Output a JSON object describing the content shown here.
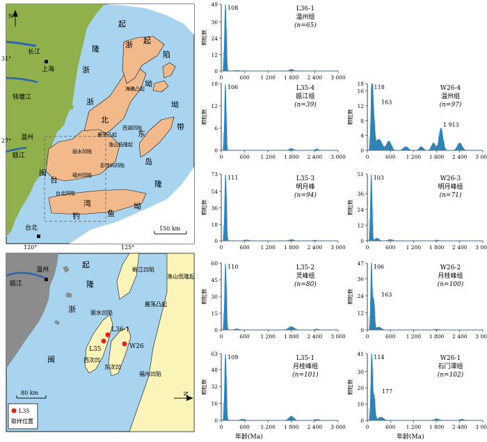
{
  "colors": {
    "sea": "#a9d4ef",
    "land_green": "#8fb04a",
    "basin": "#f2b98a",
    "sand": "#fbf4b9",
    "grey_land": "#8c8c8c",
    "bar": "#1f86c2",
    "sample": "#e32119"
  },
  "map_top": {
    "latitudes": [
      "31°",
      "27°"
    ],
    "longitudes": [
      "120°",
      "125°"
    ],
    "scale": "150 km",
    "places": {
      "changjiang": "长江",
      "shanghai": "上海",
      "qiantangjiang": "钱塘江",
      "wenzhou": "温州",
      "oujiang": "瓯江",
      "taibei": "台北"
    },
    "ticks_top": [
      "N"
    ],
    "basin_labels": [
      "丽水凹陷",
      "椒江凹陷",
      "福州凹陷",
      "雁荡凸起",
      "瓯江凹陷",
      "闽江凹陷",
      "海礁凸起",
      "钱塘凹陷",
      "渔山低隆起",
      "西湖凹陷",
      "彭佳屿凹陷",
      "台北凹陷"
    ],
    "zone_chars": [
      "浙",
      "闽",
      "隆",
      "起",
      "北",
      "坳",
      "陷",
      "东",
      "海",
      "陆",
      "架",
      "盆",
      "地",
      "台",
      "湾",
      "东",
      "部",
      "带",
      "隆",
      "褶",
      "钓",
      "鱼",
      "岛",
      "起",
      "坳",
      "带",
      "中",
      "陷"
    ]
  },
  "map_bottom": {
    "places": {
      "wenzhou": "温州",
      "oujiang": "瓯江"
    },
    "zone_chars": [
      "浙",
      "闽",
      "隆",
      "起"
    ],
    "basin_labels": [
      "椒江凹陷",
      "渔山低隆起",
      "雁荡凸起",
      "丽水凹陷",
      "西次凹",
      "东次凹",
      "福州凹陷"
    ],
    "samples": [
      "L36-1",
      "L35",
      "W26"
    ],
    "scale": "80 km",
    "north": "N",
    "legend_sample": "L35",
    "legend_text": "取样位置"
  },
  "axis": {
    "ylabel": "颗粒数",
    "xlabel": "年龄(Ma)",
    "xticks": [
      "0",
      "600",
      "1 200",
      "1 800",
      "2 400",
      "3 000"
    ]
  },
  "chart_data": [
    {
      "type": "bar",
      "sample": "L36-1",
      "formation": "温州组",
      "n": "(n=65)",
      "peaks": [
        "108"
      ],
      "yticks": [
        "0",
        "12",
        "24",
        "36",
        "49"
      ],
      "ymax": 49,
      "components": [
        [
          108,
          49,
          22
        ],
        [
          400,
          0.5,
          60
        ],
        [
          1800,
          1.2,
          50
        ]
      ]
    },
    {
      "type": "bar",
      "sample": "L35-4",
      "formation": "瓯江组",
      "n": "(n=39)",
      "peaks": [
        "106"
      ],
      "yticks": [
        "0",
        "6",
        "12",
        "18"
      ],
      "ymax": 18,
      "components": [
        [
          106,
          18,
          20
        ],
        [
          1800,
          0.5,
          50
        ],
        [
          2450,
          0.4,
          40
        ]
      ]
    },
    {
      "type": "bar",
      "sample": "W26-4",
      "formation": "温州组",
      "n": "(n=97)",
      "peaks": [
        "118",
        "163",
        "1 913"
      ],
      "yticks": [
        "0",
        "4",
        "8",
        "12",
        "16",
        "18"
      ],
      "ymax": 18,
      "components": [
        [
          118,
          17,
          25
        ],
        [
          163,
          8,
          30
        ],
        [
          300,
          3,
          80
        ],
        [
          560,
          2.5,
          60
        ],
        [
          1000,
          1,
          60
        ],
        [
          1400,
          1,
          50
        ],
        [
          1720,
          2,
          50
        ],
        [
          1913,
          6,
          50
        ],
        [
          2400,
          2,
          60
        ]
      ]
    },
    {
      "type": "bar",
      "sample": "L35-3",
      "formation": "明月峰",
      "n": "(n=94)",
      "peaks": [
        "111"
      ],
      "yticks": [
        "0",
        "18",
        "36",
        "54",
        "73"
      ],
      "ymax": 73,
      "components": [
        [
          111,
          73,
          22
        ],
        [
          650,
          1,
          60
        ],
        [
          1800,
          1.5,
          50
        ],
        [
          2400,
          0.8,
          50
        ]
      ]
    },
    {
      "type": "bar",
      "sample": "W26-3",
      "formation": "明月峰组",
      "n": "(n=71)",
      "peaks": [
        "103"
      ],
      "yticks": [
        "0",
        "12",
        "24",
        "36",
        "51"
      ],
      "ymax": 51,
      "components": [
        [
          103,
          51,
          20
        ],
        [
          250,
          2,
          50
        ],
        [
          600,
          1,
          60
        ],
        [
          1800,
          0.6,
          50
        ]
      ]
    },
    {
      "type": "bar",
      "sample": "L35-2",
      "formation": "灵峰组",
      "n": "(n=80)",
      "peaks": [
        "110"
      ],
      "yticks": [
        "0",
        "15",
        "30",
        "45",
        "60"
      ],
      "ymax": 60,
      "components": [
        [
          110,
          60,
          22
        ],
        [
          400,
          1,
          60
        ],
        [
          1800,
          3,
          70
        ],
        [
          2450,
          0.8,
          50
        ]
      ]
    },
    {
      "type": "bar",
      "sample": "W26-2",
      "formation": "月桂峰组",
      "n": "(n=100)",
      "peaks": [
        "106",
        "163"
      ],
      "yticks": [
        "0",
        "12",
        "24",
        "36",
        "47"
      ],
      "ymax": 47,
      "components": [
        [
          106,
          47,
          18
        ],
        [
          163,
          22,
          25
        ],
        [
          300,
          2,
          60
        ],
        [
          1800,
          0.5,
          50
        ]
      ]
    },
    {
      "type": "bar",
      "sample": "L35-1",
      "formation": "月桂峰组",
      "n": "(n=101)",
      "peaks": [
        "109"
      ],
      "yticks": [
        "0",
        "16",
        "32",
        "48",
        "63"
      ],
      "ymax": 63,
      "components": [
        [
          109,
          63,
          22
        ],
        [
          550,
          1.2,
          60
        ],
        [
          1800,
          4,
          60
        ],
        [
          2450,
          1,
          60
        ]
      ]
    },
    {
      "type": "bar",
      "sample": "W26-1",
      "formation": "石门潭组",
      "n": "(n=102)",
      "peaks": [
        "114",
        "177"
      ],
      "yticks": [
        "0",
        "10",
        "20",
        "30",
        "41"
      ],
      "ymax": 41,
      "components": [
        [
          114,
          41,
          22
        ],
        [
          177,
          15,
          25
        ],
        [
          350,
          2,
          70
        ],
        [
          1800,
          1,
          60
        ],
        [
          2450,
          0.8,
          50
        ]
      ]
    }
  ]
}
